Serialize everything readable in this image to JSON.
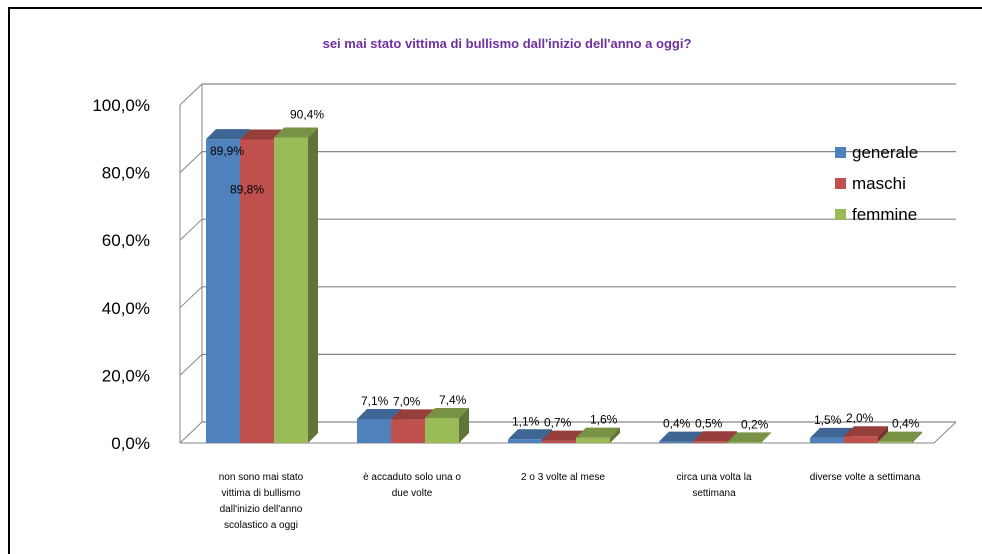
{
  "chart_data": {
    "type": "bar",
    "title": "sei mai stato vittima di bullismo dall'inizio dell'anno a oggi?",
    "categories": [
      [
        "non sono mai stato",
        "vittima di bullismo",
        "dall'inizio dell'anno",
        "scolastico a oggi"
      ],
      [
        "è accaduto solo una o",
        "due volte"
      ],
      [
        "2 o 3 volte al mese"
      ],
      [
        "circa una volta la",
        "settimana"
      ],
      [
        "diverse volte a settimana"
      ]
    ],
    "series": [
      {
        "name": "generale",
        "values": [
          89.9,
          7.1,
          1.1,
          0.4,
          1.5
        ],
        "labels": [
          "89,9%",
          "7,1%",
          "1,1%",
          "0,4%",
          "1,5%"
        ]
      },
      {
        "name": "maschi",
        "values": [
          89.8,
          7.0,
          0.7,
          0.5,
          2.0
        ],
        "labels": [
          "89,8%",
          "7,0%",
          "0,7%",
          "0,5%",
          "2,0%"
        ]
      },
      {
        "name": "femmine",
        "values": [
          90.4,
          7.4,
          1.6,
          0.2,
          0.4
        ],
        "labels": [
          "90,4%",
          "7,4%",
          "1,6%",
          "0,2%",
          "0,4%"
        ]
      }
    ],
    "ylim": [
      0,
      100
    ],
    "yticks": [
      0,
      20,
      40,
      60,
      80,
      100
    ],
    "ytick_labels": [
      "0,0%",
      "20,0%",
      "40,0%",
      "60,0%",
      "80,0%",
      "100,0%"
    ],
    "grid": true,
    "legend_position": "right",
    "colors": {
      "generale": "#4f81bd",
      "maschi": "#c0504d",
      "femmine": "#9bbb59",
      "title": "#7030a0"
    }
  }
}
